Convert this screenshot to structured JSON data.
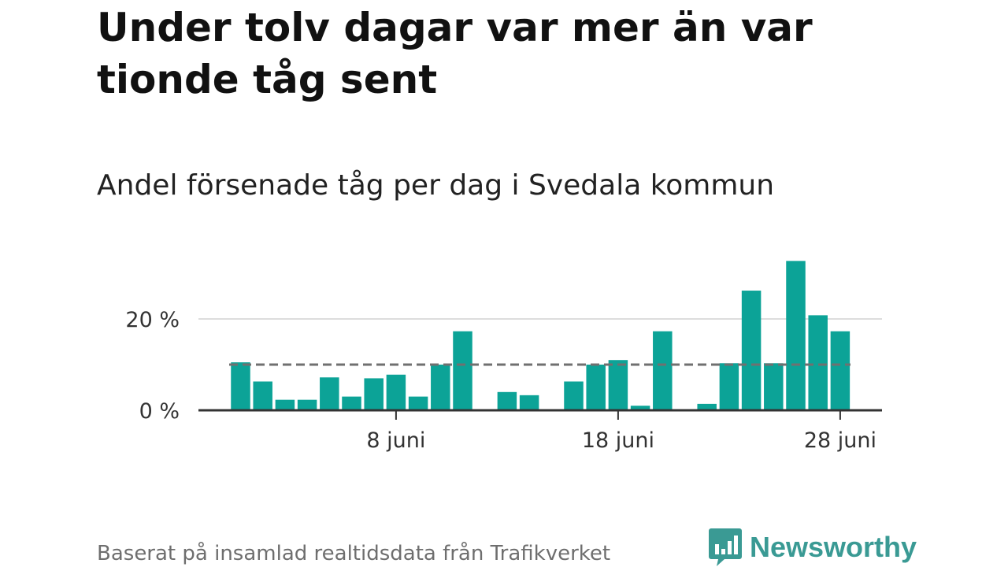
{
  "header": {
    "title": "Under tolv dagar var mer än var tionde tåg sent",
    "subtitle": "Andel försenade tåg per dag i Svedala kommun"
  },
  "footer": {
    "source": "Baserat på insamlad realtidsdata från Trafikverket",
    "brand": "Newsworthy",
    "brand_icon": "bar-chart-speech-bubble-icon"
  },
  "colors": {
    "bar": "#0ca397",
    "average_line": "#707070",
    "grid": "#dddddd",
    "axis": "#333333",
    "brand": "#3a9a94"
  },
  "chart_data": {
    "type": "bar",
    "title": "",
    "xlabel": "",
    "ylabel": "",
    "x": [
      "1 juni",
      "2 juni",
      "3 juni",
      "4 juni",
      "5 juni",
      "6 juni",
      "7 juni",
      "8 juni",
      "9 juni",
      "10 juni",
      "11 juni",
      "12 juni",
      "13 juni",
      "14 juni",
      "15 juni",
      "16 juni",
      "17 juni",
      "18 juni",
      "19 juni",
      "20 juni",
      "21 juni",
      "22 juni",
      "23 juni",
      "24 juni",
      "25 juni",
      "26 juni",
      "27 juni",
      "28 juni",
      "29 juni",
      "30 juni"
    ],
    "values": [
      10.5,
      6.3,
      2.3,
      2.3,
      7.2,
      3.0,
      7.0,
      7.8,
      3.0,
      10.0,
      17.3,
      null,
      4.0,
      3.3,
      null,
      6.3,
      10.0,
      11.0,
      1.0,
      17.3,
      null,
      1.4,
      10.3,
      26.2,
      10.3,
      32.7,
      20.8,
      17.3,
      null,
      null
    ],
    "series": [
      {
        "values_unit": "%"
      }
    ],
    "average_line": 10,
    "ylim": [
      0,
      35
    ],
    "yticks": [
      0,
      20
    ],
    "ytick_labels": [
      "0 %",
      "20 %"
    ],
    "xticks": [
      "8 juni",
      "18 juni",
      "28 juni"
    ],
    "grid": true
  }
}
